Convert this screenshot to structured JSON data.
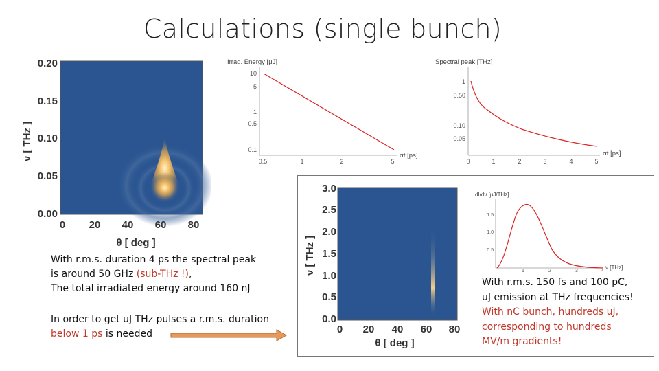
{
  "slide": {
    "title": "Calculations (single bunch)"
  },
  "colors": {
    "map_background": "#2a5591",
    "map_hot": "#f6c26b",
    "curve_red": "#dd2222",
    "note_red": "#c0392b",
    "arrow_fill": "#e59a5c",
    "arrow_stroke": "#b86a2a"
  },
  "note_single": {
    "line1": "With r.m.s. duration 4 ps the spectral peak",
    "line2_start": "is around 50 GHz ",
    "line2_red": "(sub-THz !)",
    "line2_end": ",",
    "line3": "The total irradiated energy around 160 nJ"
  },
  "note_requirement": {
    "line1": "In order to get uJ THz pulses a r.m.s. duration",
    "line2_red": "below 1 ps",
    "line2_end": " is needed"
  },
  "note_short": {
    "line1": "With r.m.s. 150 fs  and 100 pC,",
    "line2": "uJ emission at THz frequencies!",
    "line3": "With nC bunch, hundreds uJ,",
    "line4": "corresponding to hundreds",
    "line5": "MV/m gradients!"
  },
  "chart_data": [
    {
      "type": "heatmap",
      "xlabel": "θ [ deg ]",
      "ylabel": "ν [ THz ]",
      "xlim": [
        -10,
        90
      ],
      "ylim": [
        0,
        0.2
      ],
      "xticks": [
        "0",
        "20",
        "40",
        "60",
        "80"
      ],
      "yticks": [
        "0.00",
        "0.05",
        "0.10",
        "0.15",
        "0.20"
      ],
      "peak": {
        "theta_deg": 62,
        "nu_THz": 0.05
      }
    },
    {
      "type": "line",
      "ylabel": "Irrad. Energy [μJ]",
      "xlabel": "σt [ps]",
      "xscale": "log",
      "yscale": "log",
      "xticks": [
        "0.5",
        "1",
        "2",
        "5"
      ],
      "yticks": [
        "10",
        "5",
        "1",
        "0.5",
        "0.1"
      ],
      "series": [
        {
          "x": [
            0.5,
            1,
            2,
            5
          ],
          "y": [
            10,
            2.6,
            0.65,
            0.1
          ]
        }
      ]
    },
    {
      "type": "line",
      "ylabel": "Spectral peak [THz]",
      "xlabel": "σt [ps]",
      "xscale": "linear",
      "yscale": "log",
      "xlim": [
        0,
        5
      ],
      "xticks": [
        "0",
        "1",
        "2",
        "3",
        "4",
        "5"
      ],
      "yticks": [
        "1",
        "0.50",
        "0.10",
        "0.05"
      ],
      "series": [
        {
          "x": [
            0.1,
            0.2,
            0.5,
            1,
            2,
            3,
            4,
            5
          ],
          "y": [
            1.0,
            0.5,
            0.22,
            0.12,
            0.065,
            0.045,
            0.036,
            0.03
          ]
        }
      ]
    },
    {
      "type": "heatmap",
      "xlabel": "θ [ deg ]",
      "ylabel": "ν [ THz ]",
      "xlim": [
        -10,
        90
      ],
      "ylim": [
        0,
        3.0
      ],
      "xticks": [
        "0",
        "20",
        "40",
        "60",
        "80"
      ],
      "yticks": [
        "0.0",
        "0.5",
        "1.0",
        "1.5",
        "2.0",
        "2.5",
        "3.0"
      ],
      "peak": {
        "theta_deg": 66,
        "nu_THz": 0.7
      }
    },
    {
      "type": "line",
      "ylabel": "dI/dν [μJ/THz]",
      "xlabel": "ν [THz]",
      "xlim": [
        0,
        4
      ],
      "ylim": [
        0,
        1.8
      ],
      "xticks": [
        "1",
        "2",
        "3",
        "4"
      ],
      "yticks": [
        "1.5",
        "1.0",
        "0.5"
      ],
      "series": [
        {
          "x": [
            0,
            0.25,
            0.5,
            0.75,
            1.0,
            1.25,
            1.5,
            2.0,
            2.5,
            3.0,
            3.5,
            4.0
          ],
          "y": [
            0,
            0.55,
            1.2,
            1.58,
            1.62,
            1.4,
            1.05,
            0.42,
            0.12,
            0.03,
            0.005,
            0
          ]
        }
      ]
    }
  ]
}
